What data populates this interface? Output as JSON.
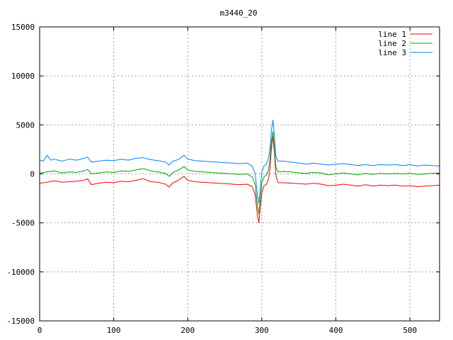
{
  "chart_data": {
    "type": "line",
    "title": "m3440_20",
    "xlabel": "",
    "ylabel": "",
    "xlim": [
      0,
      540
    ],
    "ylim": [
      -15000,
      15000
    ],
    "x_ticks": [
      0,
      100,
      200,
      300,
      400,
      500
    ],
    "y_ticks": [
      -15000,
      -10000,
      -5000,
      0,
      5000,
      10000,
      15000
    ],
    "grid": true,
    "legend_position": "top-right",
    "series": [
      {
        "name": "line 1",
        "color": "#ff0000",
        "points": [
          [
            0,
            -950
          ],
          [
            10,
            -850
          ],
          [
            20,
            -700
          ],
          [
            30,
            -850
          ],
          [
            40,
            -800
          ],
          [
            50,
            -750
          ],
          [
            60,
            -650
          ],
          [
            65,
            -500
          ],
          [
            70,
            -1100
          ],
          [
            80,
            -950
          ],
          [
            90,
            -850
          ],
          [
            100,
            -900
          ],
          [
            110,
            -750
          ],
          [
            120,
            -800
          ],
          [
            130,
            -650
          ],
          [
            140,
            -500
          ],
          [
            150,
            -800
          ],
          [
            160,
            -850
          ],
          [
            170,
            -1050
          ],
          [
            175,
            -1350
          ],
          [
            180,
            -900
          ],
          [
            185,
            -750
          ],
          [
            190,
            -500
          ],
          [
            195,
            -250
          ],
          [
            200,
            -650
          ],
          [
            210,
            -800
          ],
          [
            220,
            -850
          ],
          [
            230,
            -900
          ],
          [
            240,
            -950
          ],
          [
            250,
            -1000
          ],
          [
            260,
            -1050
          ],
          [
            270,
            -1100
          ],
          [
            280,
            -1050
          ],
          [
            287,
            -1300
          ],
          [
            291,
            -2100
          ],
          [
            294,
            -4200
          ],
          [
            296,
            -5000
          ],
          [
            298,
            -3400
          ],
          [
            300,
            -1900
          ],
          [
            303,
            -1200
          ],
          [
            306,
            -1100
          ],
          [
            309,
            -500
          ],
          [
            311,
            500
          ],
          [
            313,
            2600
          ],
          [
            315,
            3800
          ],
          [
            317,
            2200
          ],
          [
            319,
            -200
          ],
          [
            322,
            -900
          ],
          [
            330,
            -900
          ],
          [
            340,
            -950
          ],
          [
            350,
            -1000
          ],
          [
            360,
            -1050
          ],
          [
            370,
            -950
          ],
          [
            380,
            -1050
          ],
          [
            390,
            -1200
          ],
          [
            400,
            -1150
          ],
          [
            410,
            -1050
          ],
          [
            420,
            -1150
          ],
          [
            430,
            -1250
          ],
          [
            440,
            -1100
          ],
          [
            450,
            -1250
          ],
          [
            460,
            -1150
          ],
          [
            470,
            -1200
          ],
          [
            480,
            -1150
          ],
          [
            490,
            -1250
          ],
          [
            500,
            -1200
          ],
          [
            510,
            -1300
          ],
          [
            520,
            -1250
          ],
          [
            530,
            -1200
          ],
          [
            540,
            -1150
          ]
        ]
      },
      {
        "name": "line 2",
        "color": "#00a000",
        "points": [
          [
            0,
            100
          ],
          [
            10,
            200
          ],
          [
            20,
            300
          ],
          [
            30,
            100
          ],
          [
            40,
            200
          ],
          [
            50,
            150
          ],
          [
            60,
            300
          ],
          [
            65,
            450
          ],
          [
            70,
            0
          ],
          [
            80,
            100
          ],
          [
            90,
            200
          ],
          [
            100,
            150
          ],
          [
            110,
            300
          ],
          [
            120,
            250
          ],
          [
            130,
            400
          ],
          [
            140,
            550
          ],
          [
            150,
            300
          ],
          [
            160,
            200
          ],
          [
            170,
            50
          ],
          [
            175,
            -250
          ],
          [
            180,
            150
          ],
          [
            185,
            300
          ],
          [
            190,
            500
          ],
          [
            195,
            750
          ],
          [
            200,
            400
          ],
          [
            210,
            250
          ],
          [
            220,
            200
          ],
          [
            230,
            150
          ],
          [
            240,
            100
          ],
          [
            250,
            50
          ],
          [
            260,
            0
          ],
          [
            270,
            -50
          ],
          [
            280,
            0
          ],
          [
            287,
            -300
          ],
          [
            291,
            -1100
          ],
          [
            294,
            -3200
          ],
          [
            296,
            -4100
          ],
          [
            298,
            -2500
          ],
          [
            300,
            -900
          ],
          [
            303,
            -300
          ],
          [
            306,
            -100
          ],
          [
            309,
            400
          ],
          [
            311,
            1500
          ],
          [
            313,
            3400
          ],
          [
            315,
            4300
          ],
          [
            317,
            2700
          ],
          [
            319,
            700
          ],
          [
            322,
            200
          ],
          [
            330,
            250
          ],
          [
            340,
            200
          ],
          [
            350,
            100
          ],
          [
            360,
            50
          ],
          [
            370,
            150
          ],
          [
            380,
            100
          ],
          [
            390,
            -100
          ],
          [
            400,
            0
          ],
          [
            410,
            100
          ],
          [
            420,
            0
          ],
          [
            430,
            -100
          ],
          [
            440,
            50
          ],
          [
            450,
            -50
          ],
          [
            460,
            50
          ],
          [
            470,
            0
          ],
          [
            480,
            50
          ],
          [
            490,
            0
          ],
          [
            500,
            50
          ],
          [
            510,
            -50
          ],
          [
            520,
            0
          ],
          [
            530,
            50
          ],
          [
            540,
            100
          ]
        ]
      },
      {
        "name": "line 3",
        "color": "#0080ff",
        "points": [
          [
            0,
            1400
          ],
          [
            5,
            1300
          ],
          [
            10,
            1900
          ],
          [
            15,
            1400
          ],
          [
            20,
            1500
          ],
          [
            30,
            1300
          ],
          [
            40,
            1500
          ],
          [
            50,
            1400
          ],
          [
            60,
            1600
          ],
          [
            65,
            1700
          ],
          [
            70,
            1200
          ],
          [
            80,
            1300
          ],
          [
            90,
            1400
          ],
          [
            100,
            1350
          ],
          [
            110,
            1500
          ],
          [
            120,
            1400
          ],
          [
            130,
            1600
          ],
          [
            140,
            1650
          ],
          [
            150,
            1450
          ],
          [
            160,
            1350
          ],
          [
            170,
            1200
          ],
          [
            175,
            900
          ],
          [
            180,
            1300
          ],
          [
            185,
            1400
          ],
          [
            190,
            1600
          ],
          [
            195,
            1900
          ],
          [
            200,
            1500
          ],
          [
            210,
            1350
          ],
          [
            220,
            1300
          ],
          [
            230,
            1250
          ],
          [
            240,
            1200
          ],
          [
            250,
            1150
          ],
          [
            260,
            1100
          ],
          [
            270,
            1050
          ],
          [
            280,
            1100
          ],
          [
            287,
            800
          ],
          [
            291,
            0
          ],
          [
            294,
            -2100
          ],
          [
            296,
            -3000
          ],
          [
            298,
            -1400
          ],
          [
            300,
            200
          ],
          [
            303,
            800
          ],
          [
            306,
            1000
          ],
          [
            309,
            1600
          ],
          [
            311,
            2600
          ],
          [
            313,
            4500
          ],
          [
            315,
            5500
          ],
          [
            317,
            3800
          ],
          [
            319,
            1800
          ],
          [
            322,
            1300
          ],
          [
            330,
            1300
          ],
          [
            340,
            1200
          ],
          [
            350,
            1100
          ],
          [
            360,
            1000
          ],
          [
            370,
            1100
          ],
          [
            380,
            1000
          ],
          [
            390,
            900
          ],
          [
            400,
            1000
          ],
          [
            410,
            1050
          ],
          [
            420,
            950
          ],
          [
            430,
            850
          ],
          [
            440,
            950
          ],
          [
            450,
            850
          ],
          [
            460,
            950
          ],
          [
            470,
            900
          ],
          [
            480,
            950
          ],
          [
            490,
            850
          ],
          [
            500,
            950
          ],
          [
            510,
            800
          ],
          [
            520,
            900
          ],
          [
            530,
            850
          ],
          [
            540,
            800
          ]
        ]
      }
    ]
  }
}
